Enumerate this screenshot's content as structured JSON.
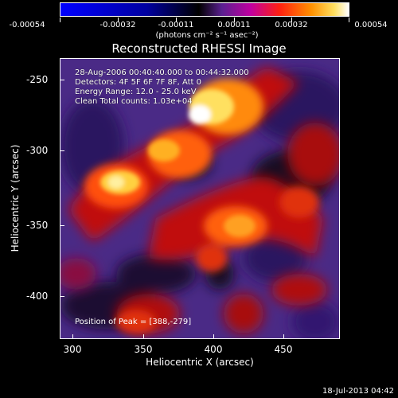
{
  "colorbar": {
    "labels": [
      "-0.00054",
      "-0.00032",
      "-0.00011",
      "0.00011",
      "0.00032",
      "0.00054"
    ],
    "units": "(photons cm⁻² s⁻¹ asec⁻²)",
    "colors": [
      "#0000ff",
      "#000000",
      "#3a1a6b",
      "#b000b0",
      "#ff2000",
      "#ff8000",
      "#ffd040",
      "#ffffff"
    ]
  },
  "title": "Reconstructed RHESSI Image",
  "info": {
    "time_range": "28-Aug-2006 00:40:40.000 to 00:44:32.000",
    "detectors": "Detectors: 4F 5F 6F 7F 8F, Att 0",
    "energy": "Energy Range: 12.0 - 25.0 keV",
    "clean": "Clean     Total counts: 1.03e+04"
  },
  "peak_text": "Position of Peak = [388,-279]",
  "x_axis": {
    "label": "Heliocentric X (arcsec)",
    "ticks": [
      "300",
      "350",
      "400",
      "450"
    ]
  },
  "y_axis": {
    "label": "Heliocentric Y (arcsec)",
    "ticks": [
      "-250",
      "-300",
      "-350",
      "-400"
    ]
  },
  "timestamp": "18-Jul-2013 04:42"
}
